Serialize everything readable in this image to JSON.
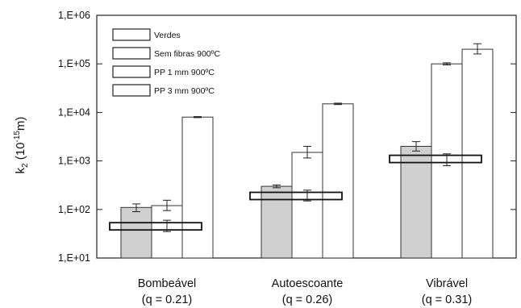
{
  "chart_data": {
    "type": "bar",
    "yscale": "log",
    "ylim": [
      10,
      1000000
    ],
    "ylabel": {
      "base": "k",
      "sub": "2",
      "paren_open": " (10",
      "sup": "-15",
      "paren_close": "m)"
    },
    "yticks": [
      {
        "value": 10,
        "label": "1,E+01"
      },
      {
        "value": 100,
        "label": "1,E+02"
      },
      {
        "value": 1000,
        "label": "1,E+03"
      },
      {
        "value": 10000,
        "label": "1,E+04"
      },
      {
        "value": 100000,
        "label": "1,E+05"
      },
      {
        "value": 1000000,
        "label": "1,E+06"
      }
    ],
    "categories": [
      {
        "name": "Bombeável",
        "q": "(q = 0.21)"
      },
      {
        "name": "Autoescoante",
        "q": "(q = 0.26)"
      },
      {
        "name": "Vibrável",
        "q": "(q = 0.31)"
      }
    ],
    "series": [
      {
        "name": "Verdes",
        "color": "#d0d0d0",
        "style": "bar",
        "values": [
          110,
          300,
          2000
        ],
        "err_low": [
          90,
          280,
          1600
        ],
        "err_high": [
          130,
          320,
          2500
        ]
      },
      {
        "name": "Sem fibras 900ºC",
        "color": "#ffffff",
        "style": "flat",
        "values": [
          45,
          190,
          1100
        ],
        "err_low": [
          35,
          150,
          800
        ],
        "err_high": [
          60,
          250,
          1400
        ]
      },
      {
        "name": "PP 1 mm 900ºC",
        "color": "#ffffff",
        "style": "bar",
        "values": [
          120,
          1500,
          100000
        ],
        "err_low": [
          95,
          1150,
          95000
        ],
        "err_high": [
          155,
          2000,
          105000
        ]
      },
      {
        "name": "PP 3 mm 900ºC",
        "color": "#ffffff",
        "style": "bar",
        "values": [
          8000,
          15000,
          200000
        ],
        "err_low": [
          7800,
          14500,
          160000
        ],
        "err_high": [
          8200,
          15500,
          260000
        ]
      }
    ],
    "legend_position": "top-left",
    "grid": false
  }
}
